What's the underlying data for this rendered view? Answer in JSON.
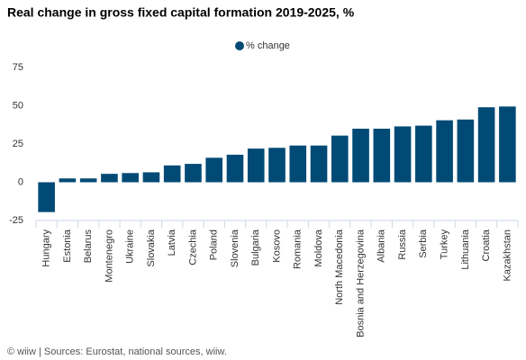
{
  "chart_data": {
    "type": "bar",
    "title": "Real change in gross fixed capital formation 2019-2025, %",
    "categories": [
      "Hungary",
      "Estonia",
      "Belarus",
      "Montenegro",
      "Ukraine",
      "Slovakia",
      "Latvia",
      "Czechia",
      "Poland",
      "Slovenia",
      "Bulgaria",
      "Kosovo",
      "Romania",
      "Moldova",
      "North Macedonia",
      "Bosnia and Herzegovina",
      "Albania",
      "Russia",
      "Serbia",
      "Turkey",
      "Lithuania",
      "Croatia",
      "Kazakhstan"
    ],
    "series": [
      {
        "name": "% change",
        "color": "#004a75",
        "values": [
          -19.5,
          2.5,
          2.5,
          5.5,
          6,
          6.5,
          11,
          12,
          16,
          18,
          22,
          22.5,
          24,
          24,
          30.5,
          35,
          35,
          36.5,
          37,
          40.5,
          41,
          49,
          49.5
        ]
      }
    ],
    "ylim": [
      -25,
      75
    ],
    "yticks": [
      -25,
      0,
      25,
      50,
      75
    ],
    "grid": false,
    "legend": "top",
    "source": "© wiiw | Sources: Eurostat, national sources, wiiw."
  }
}
